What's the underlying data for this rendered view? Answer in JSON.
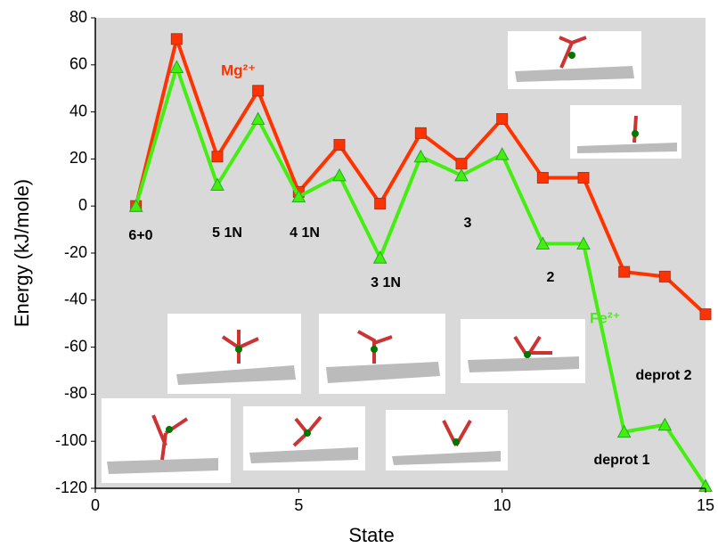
{
  "chart_data": {
    "type": "line",
    "x_label": "State",
    "y_label": "Energy (kJ/mole)",
    "x": [
      1,
      2,
      3,
      4,
      5,
      6,
      7,
      8,
      9,
      10,
      11,
      12,
      13,
      14,
      15
    ],
    "series": [
      {
        "name": "Mg²⁺",
        "color": "#ff3300",
        "marker": "square",
        "values": [
          0,
          71,
          21,
          49,
          6,
          26,
          1,
          31,
          18,
          37,
          12,
          12,
          -28,
          -30,
          -46
        ]
      },
      {
        "name": "Fe²⁺",
        "color": "#44ee11",
        "marker": "triangle",
        "values": [
          0,
          59,
          9,
          37,
          4,
          13,
          -22,
          21,
          13,
          22,
          -16,
          -16,
          -96,
          -93,
          -119
        ]
      }
    ],
    "annotations": [
      "6+0",
      "5 1N",
      "4 1N",
      "3 1N",
      "3",
      "2",
      "deprot 1",
      "deprot 2"
    ],
    "xlim": [
      0,
      15
    ],
    "xticks": [
      0,
      5,
      10,
      15
    ],
    "ylim": [
      -120,
      80
    ],
    "yticks": [
      -120,
      -100,
      -80,
      -60,
      -40,
      -20,
      0,
      20,
      40,
      60,
      80
    ],
    "background": "#d9d9d9"
  }
}
